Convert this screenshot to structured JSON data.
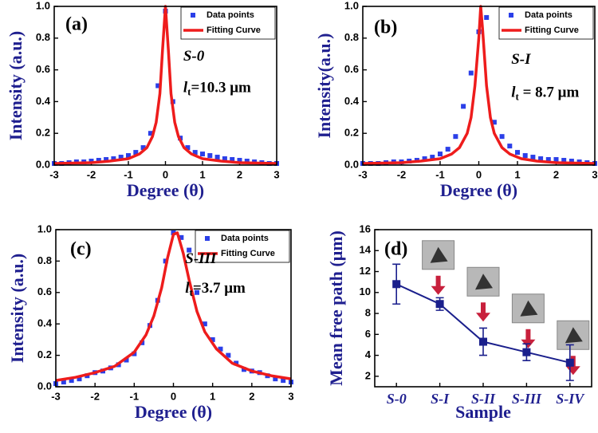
{
  "chart_data": [
    {
      "type": "line",
      "panel_label": "(a)",
      "x_label": "Degree (θ)",
      "y_label": "Intensity (a.u.)",
      "sample": "S-0",
      "lt": {
        "symbol": "l",
        "sub": "t",
        "text": "=10.3 μm"
      },
      "xlim": [
        -3,
        3
      ],
      "xticks": [
        -3,
        -2,
        -1,
        0,
        1,
        2,
        3
      ],
      "ylim": [
        0,
        1
      ],
      "yticks": [
        {
          "value": 0,
          "label": "0.0"
        },
        {
          "value": 0.2,
          "label": "0.2"
        },
        {
          "value": 0.4,
          "label": "0.4"
        },
        {
          "value": 0.6,
          "label": "0.6"
        },
        {
          "value": 0.8,
          "label": "0.8"
        },
        {
          "value": 1,
          "label": "1.0"
        }
      ],
      "legend": "upper right",
      "series": [
        {
          "name": "Data points",
          "style": "markers",
          "color": "#2b3fe8",
          "x": [
            -3,
            -2.8,
            -2.6,
            -2.4,
            -2.2,
            -2,
            -1.8,
            -1.6,
            -1.4,
            -1.2,
            -1,
            -0.8,
            -0.6,
            -0.4,
            -0.2,
            0,
            0.2,
            0.4,
            0.6,
            0.8,
            1,
            1.2,
            1.4,
            1.6,
            1.8,
            2,
            2.2,
            2.4,
            2.6,
            2.8,
            3
          ],
          "values": [
            0.01,
            0.01,
            0.015,
            0.02,
            0.02,
            0.025,
            0.03,
            0.035,
            0.04,
            0.05,
            0.06,
            0.08,
            0.11,
            0.2,
            0.5,
            0.97,
            0.4,
            0.17,
            0.11,
            0.08,
            0.07,
            0.06,
            0.05,
            0.04,
            0.035,
            0.03,
            0.025,
            0.02,
            0.015,
            0.01,
            0.01
          ]
        },
        {
          "name": "Fitting Curve",
          "style": "line",
          "color": "#ee1c1c",
          "x": [
            -3,
            -2,
            -1.5,
            -1,
            -0.7,
            -0.5,
            -0.35,
            -0.25,
            -0.15,
            -0.08,
            0,
            0.08,
            0.15,
            0.25,
            0.35,
            0.5,
            0.7,
            1,
            1.5,
            2,
            3
          ],
          "values": [
            0.01,
            0.015,
            0.025,
            0.04,
            0.07,
            0.11,
            0.18,
            0.27,
            0.45,
            0.72,
            1.0,
            0.72,
            0.45,
            0.27,
            0.18,
            0.11,
            0.07,
            0.04,
            0.025,
            0.015,
            0.01
          ]
        }
      ]
    },
    {
      "type": "line",
      "panel_label": "(b)",
      "x_label": "Degree (θ)",
      "y_label": "Intensity(a.u.)",
      "sample": "S-I",
      "lt": {
        "symbol": "l",
        "sub": "t",
        "text": " = 8.7  μm"
      },
      "xlim": [
        -3,
        3
      ],
      "xticks": [
        -3,
        -2,
        -1,
        0,
        1,
        2,
        3
      ],
      "ylim": [
        0,
        1
      ],
      "yticks": [
        {
          "value": 0,
          "label": "0.0"
        },
        {
          "value": 0.2,
          "label": "0.2"
        },
        {
          "value": 0.4,
          "label": "0.4"
        },
        {
          "value": 0.6,
          "label": "0.6"
        },
        {
          "value": 0.8,
          "label": "0.8"
        },
        {
          "value": 1,
          "label": "1.0"
        }
      ],
      "legend": "upper right",
      "series": [
        {
          "name": "Data points",
          "style": "markers",
          "color": "#2b3fe8",
          "x": [
            -3,
            -2.8,
            -2.6,
            -2.4,
            -2.2,
            -2,
            -1.8,
            -1.6,
            -1.4,
            -1.2,
            -1,
            -0.8,
            -0.6,
            -0.4,
            -0.2,
            0,
            0.2,
            0.4,
            0.6,
            0.8,
            1,
            1.2,
            1.4,
            1.6,
            1.8,
            2,
            2.2,
            2.4,
            2.6,
            2.8,
            3
          ],
          "values": [
            0.01,
            0.01,
            0.01,
            0.015,
            0.02,
            0.02,
            0.025,
            0.03,
            0.04,
            0.05,
            0.07,
            0.1,
            0.18,
            0.37,
            0.58,
            0.84,
            0.93,
            0.27,
            0.18,
            0.12,
            0.08,
            0.06,
            0.05,
            0.04,
            0.035,
            0.035,
            0.03,
            0.025,
            0.02,
            0.015,
            0.01
          ]
        },
        {
          "name": "Fitting Curve",
          "style": "line",
          "color": "#ee1c1c",
          "x": [
            -3,
            -2,
            -1.5,
            -1,
            -0.7,
            -0.5,
            -0.3,
            -0.2,
            -0.1,
            0,
            0.05,
            0.1,
            0.2,
            0.3,
            0.4,
            0.6,
            0.8,
            1.1,
            1.5,
            2,
            3
          ],
          "values": [
            0.01,
            0.015,
            0.025,
            0.04,
            0.07,
            0.11,
            0.2,
            0.3,
            0.5,
            0.8,
            1.0,
            0.85,
            0.5,
            0.3,
            0.2,
            0.11,
            0.07,
            0.04,
            0.025,
            0.015,
            0.01
          ]
        }
      ]
    },
    {
      "type": "line",
      "panel_label": "(c)",
      "x_label": "Degree (θ)",
      "y_label": "Intensity (a.u.)",
      "sample": "S-III",
      "lt": {
        "symbol": "l",
        "sub": "t",
        "text": "=3.7  μm"
      },
      "xlim": [
        -3,
        3
      ],
      "xticks": [
        -3,
        -2,
        -1,
        0,
        1,
        2,
        3
      ],
      "ylim": [
        0,
        1
      ],
      "yticks": [
        {
          "value": 0,
          "label": "0.0"
        },
        {
          "value": 0.2,
          "label": "0.2"
        },
        {
          "value": 0.4,
          "label": "0.4"
        },
        {
          "value": 0.6,
          "label": "0.6"
        },
        {
          "value": 0.8,
          "label": "0.8"
        },
        {
          "value": 1,
          "label": "1.0"
        }
      ],
      "legend": "upper right",
      "series": [
        {
          "name": "Data points",
          "style": "markers",
          "color": "#2b3fe8",
          "x": [
            -3,
            -2.8,
            -2.6,
            -2.4,
            -2.2,
            -2,
            -1.8,
            -1.6,
            -1.4,
            -1.2,
            -1,
            -0.8,
            -0.6,
            -0.4,
            -0.2,
            0,
            0.2,
            0.4,
            0.6,
            0.8,
            1,
            1.2,
            1.4,
            1.6,
            1.8,
            2,
            2.2,
            2.4,
            2.6,
            2.8,
            3
          ],
          "values": [
            0.02,
            0.03,
            0.04,
            0.05,
            0.07,
            0.09,
            0.1,
            0.12,
            0.14,
            0.17,
            0.21,
            0.28,
            0.39,
            0.55,
            0.8,
            0.98,
            0.95,
            0.87,
            0.6,
            0.4,
            0.3,
            0.24,
            0.2,
            0.15,
            0.11,
            0.1,
            0.09,
            0.07,
            0.05,
            0.04,
            0.03
          ]
        },
        {
          "name": "Fitting Curve",
          "style": "line",
          "color": "#ee1c1c",
          "x": [
            -3,
            -2.5,
            -2,
            -1.5,
            -1,
            -0.7,
            -0.5,
            -0.3,
            -0.15,
            0,
            0.1,
            0.25,
            0.4,
            0.6,
            0.8,
            1.1,
            1.5,
            2,
            2.5,
            3
          ],
          "values": [
            0.04,
            0.06,
            0.09,
            0.13,
            0.22,
            0.33,
            0.45,
            0.63,
            0.82,
            0.97,
            0.98,
            0.85,
            0.68,
            0.48,
            0.35,
            0.24,
            0.15,
            0.1,
            0.07,
            0.05
          ]
        }
      ]
    },
    {
      "type": "errorline",
      "panel_label": "(d)",
      "x_label": "Sample",
      "y_label": "Mean free path (μm)",
      "categories": [
        "S-0",
        "S-I",
        "S-II",
        "S-III",
        "S-IV"
      ],
      "values": [
        10.8,
        8.9,
        5.3,
        4.3,
        3.3
      ],
      "errors": [
        1.9,
        0.6,
        1.3,
        0.8,
        1.7
      ],
      "color": "#1a1f8c",
      "ylim": [
        1,
        16
      ],
      "yticks": [
        2,
        4,
        6,
        8,
        10,
        12,
        14,
        16
      ]
    }
  ]
}
